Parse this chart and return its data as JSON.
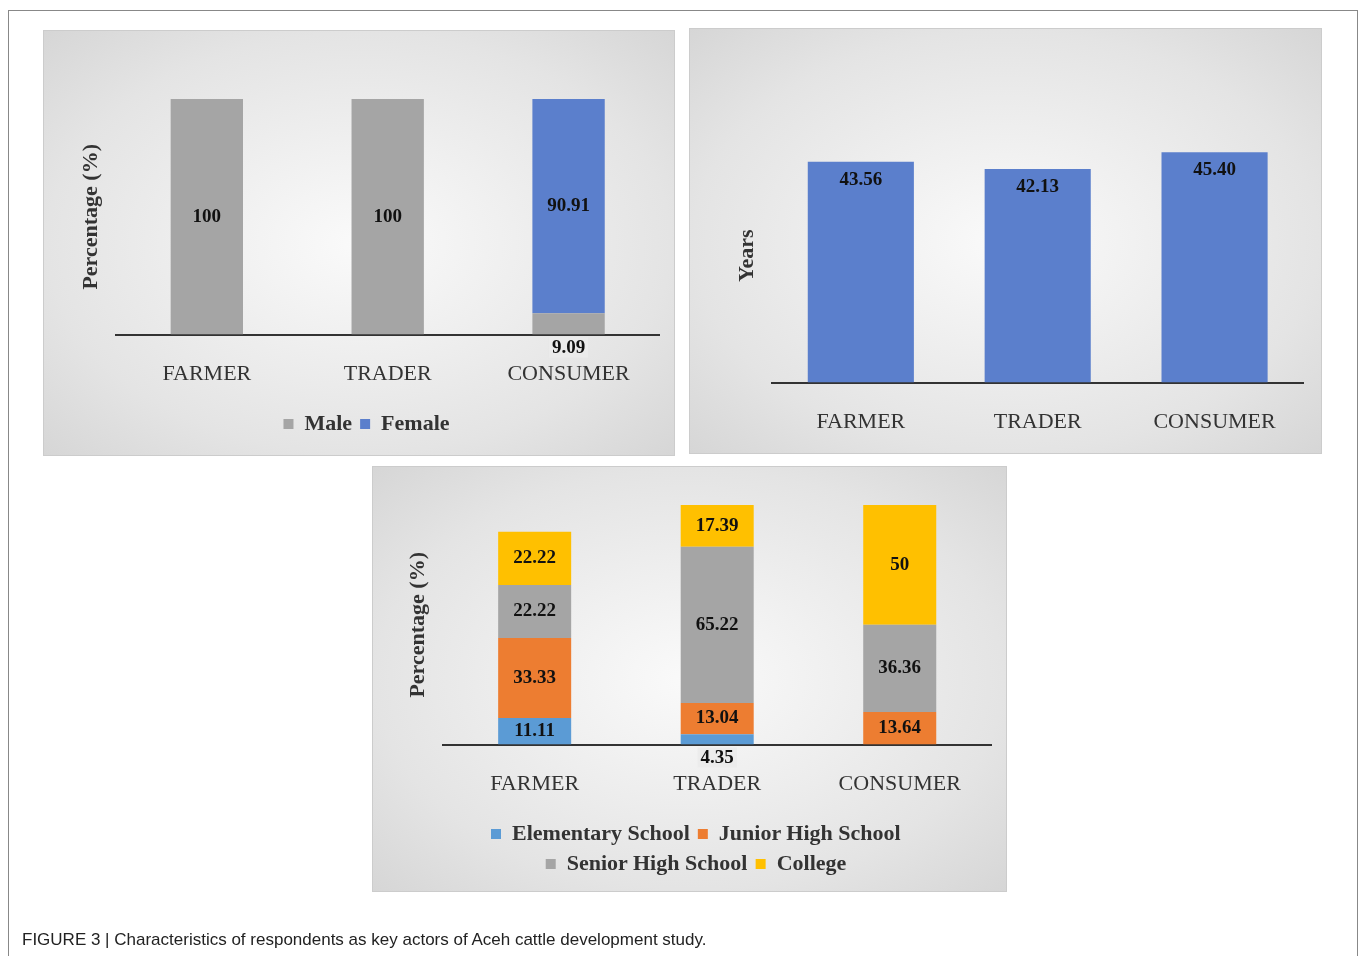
{
  "chart_data": [
    {
      "type": "bar",
      "ylabel": "Percentage (%)",
      "categories": [
        "FARMER",
        "TRADER",
        "CONSUMER"
      ],
      "stacked": true,
      "ylim": [
        0,
        100
      ],
      "data_labels": true,
      "legend": "bottom",
      "series": [
        {
          "name": "Male",
          "color": "#a5a5a5",
          "values": [
            100,
            100,
            9.09
          ]
        },
        {
          "name": "Female",
          "color": "#5b7fcc",
          "values": [
            null,
            null,
            90.91
          ]
        }
      ]
    },
    {
      "type": "bar",
      "ylabel": "Years",
      "categories": [
        "FARMER",
        "TRADER",
        "CONSUMER"
      ],
      "series": [
        {
          "color": "#5b7fcc",
          "values": [
            43.56,
            42.13,
            45.4
          ],
          "value_labels": [
            "43.56",
            "42.13",
            "45.40"
          ]
        }
      ]
    },
    {
      "type": "bar",
      "ylabel": "Percentage (%)",
      "categories": [
        "FARMER",
        "TRADER",
        "CONSUMER"
      ],
      "stacked": true,
      "ylim": [
        0,
        100
      ],
      "data_labels": true,
      "legend": "bottom",
      "annotations": [
        "FIGURE 3 | Characteristics of respondents as key actors of Aceh cattle development study."
      ],
      "series": [
        {
          "name": "Elementary School",
          "color": "#5b9bd5",
          "values": [
            11.11,
            4.35,
            null
          ]
        },
        {
          "name": "Junior High School",
          "color": "#ed7d31",
          "values": [
            33.33,
            13.04,
            13.64
          ]
        },
        {
          "name": "Senior High School",
          "color": "#a5a5a5",
          "values": [
            22.22,
            65.22,
            36.36
          ]
        },
        {
          "name": "College",
          "color": "#ffc000",
          "values": [
            22.22,
            17.39,
            50
          ]
        }
      ]
    }
  ]
}
